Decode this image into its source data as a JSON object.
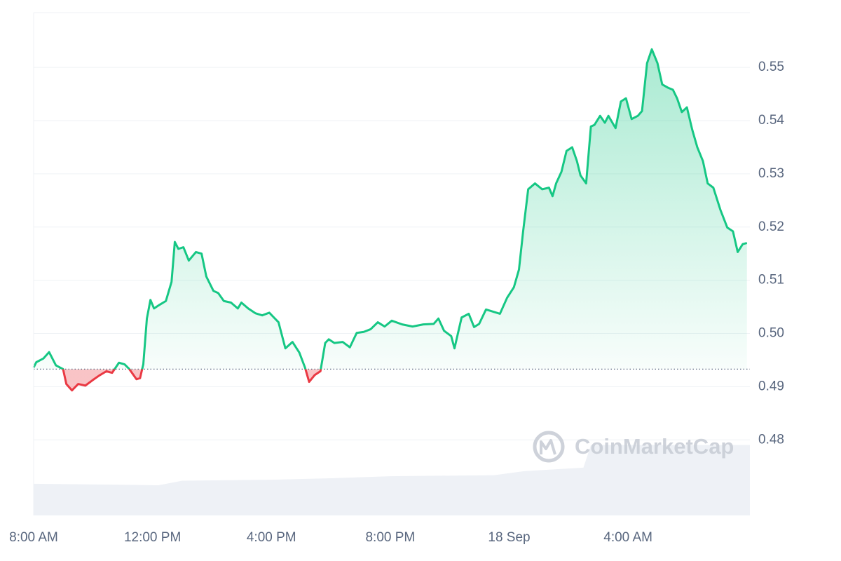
{
  "chart_data": {
    "type": "line",
    "watermark": "CoinMarketCap",
    "xlim": [
      0,
      24.1
    ],
    "xticks": [
      {
        "value": 0,
        "label": "8:00 AM"
      },
      {
        "value": 4,
        "label": "12:00 PM"
      },
      {
        "value": 8,
        "label": "4:00 PM"
      },
      {
        "value": 12,
        "label": "8:00 PM"
      },
      {
        "value": 16,
        "label": "18 Sep"
      },
      {
        "value": 20,
        "label": "4:00 AM"
      }
    ],
    "ylim": [
      0.4658,
      0.5603
    ],
    "yticks": [
      0.48,
      0.49,
      {
        "value": 0.5,
        "label": "0.50"
      },
      0.51,
      0.52,
      0.53,
      0.54,
      0.55
    ],
    "grid": true,
    "baseline": 0.4933,
    "x": [
      0,
      0.09,
      0.33,
      0.52,
      0.75,
      0.99,
      1.1,
      1.29,
      1.5,
      1.74,
      1.98,
      2.21,
      2.45,
      2.64,
      2.87,
      3.06,
      3.22,
      3.46,
      3.58,
      3.69,
      3.81,
      3.93,
      4.05,
      4.24,
      4.45,
      4.64,
      4.75,
      4.87,
      5.04,
      5.22,
      5.46,
      5.65,
      5.81,
      6.05,
      6.21,
      6.4,
      6.64,
      6.87,
      6.99,
      7.22,
      7.46,
      7.69,
      7.93,
      8.05,
      8.24,
      8.47,
      8.71,
      8.94,
      9.13,
      9.27,
      9.46,
      9.65,
      9.81,
      9.93,
      10.12,
      10.4,
      10.64,
      10.87,
      11.11,
      11.34,
      11.58,
      11.81,
      12.05,
      12.4,
      12.75,
      13.11,
      13.46,
      13.62,
      13.81,
      14.05,
      14.16,
      14.4,
      14.64,
      14.82,
      14.99,
      15.22,
      15.46,
      15.69,
      15.93,
      16.16,
      16.33,
      16.47,
      16.64,
      16.87,
      17.11,
      17.34,
      17.46,
      17.58,
      17.76,
      17.93,
      18.12,
      18.28,
      18.4,
      18.59,
      18.75,
      18.87,
      19.06,
      19.22,
      19.34,
      19.58,
      19.76,
      19.93,
      20.12,
      20.33,
      20.47,
      20.64,
      20.8,
      20.99,
      21.15,
      21.34,
      21.51,
      21.65,
      21.81,
      21.98,
      22.16,
      22.33,
      22.52,
      22.68,
      22.87,
      23.11,
      23.34,
      23.53,
      23.69,
      23.86,
      24.0
    ],
    "series": [
      {
        "color": "#16c784",
        "negative_color": "#ea3943",
        "values": [
          0.4936,
          0.4946,
          0.4953,
          0.4965,
          0.494,
          0.4933,
          0.4905,
          0.4893,
          0.4905,
          0.4902,
          0.4912,
          0.4921,
          0.4929,
          0.4926,
          0.4945,
          0.4942,
          0.4933,
          0.4914,
          0.4916,
          0.4942,
          0.5028,
          0.5063,
          0.5047,
          0.5054,
          0.5061,
          0.5097,
          0.5172,
          0.5159,
          0.5162,
          0.5137,
          0.5153,
          0.515,
          0.5107,
          0.508,
          0.5076,
          0.5061,
          0.5058,
          0.5047,
          0.5058,
          0.5047,
          0.5038,
          0.5034,
          0.5039,
          0.5032,
          0.5021,
          0.4972,
          0.4984,
          0.4964,
          0.4936,
          0.4909,
          0.4922,
          0.4929,
          0.4982,
          0.4989,
          0.4982,
          0.4984,
          0.4974,
          0.5001,
          0.5003,
          0.5008,
          0.5021,
          0.5013,
          0.5024,
          0.5017,
          0.5013,
          0.5017,
          0.5018,
          0.5028,
          0.5005,
          0.4995,
          0.4972,
          0.503,
          0.5037,
          0.5012,
          0.5018,
          0.5045,
          0.5041,
          0.5037,
          0.5067,
          0.5087,
          0.512,
          0.5192,
          0.5271,
          0.5282,
          0.5271,
          0.5274,
          0.5258,
          0.5282,
          0.5304,
          0.5343,
          0.535,
          0.5324,
          0.5297,
          0.5282,
          0.5389,
          0.5392,
          0.5409,
          0.5396,
          0.5409,
          0.5386,
          0.5436,
          0.5442,
          0.5403,
          0.5409,
          0.5418,
          0.5508,
          0.5534,
          0.5508,
          0.5468,
          0.5462,
          0.5458,
          0.5442,
          0.5416,
          0.5425,
          0.5383,
          0.535,
          0.5324,
          0.5282,
          0.5274,
          0.5232,
          0.5199,
          0.5192,
          0.5153,
          0.5168,
          0.517
        ]
      }
    ],
    "y2lim": [
      0,
      100
    ],
    "volume": {
      "color": "#eef1f6",
      "x": [
        0,
        3,
        4.2,
        5,
        8,
        10,
        12,
        15.5,
        16.5,
        18.5,
        18.75,
        24.1
      ],
      "values": [
        6.3,
        6.1,
        6.0,
        6.9,
        7.1,
        7.4,
        7.8,
        8.0,
        8.8,
        9.5,
        14,
        14
      ]
    }
  }
}
